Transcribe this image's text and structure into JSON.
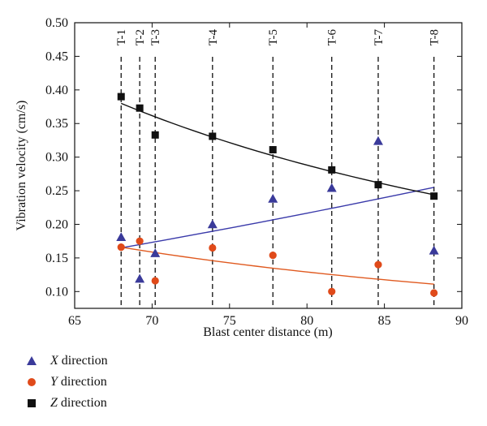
{
  "chart_data": {
    "type": "scatter",
    "xlabel": "Blast center distance (m)",
    "ylabel": "Vibration velocity (cm/s)",
    "xlim": [
      65,
      90
    ],
    "ylim": [
      0.075,
      0.5
    ],
    "xticks": [
      "65",
      "70",
      "75",
      "80",
      "85",
      "90"
    ],
    "yticks": [
      "0.10",
      "0.15",
      "0.20",
      "0.25",
      "0.30",
      "0.35",
      "0.40",
      "0.45",
      "0.50"
    ],
    "grid": false,
    "legend_position": "bottom-left",
    "vertical_lines": [
      {
        "label": "T-1",
        "x": 68.0
      },
      {
        "label": "T-2",
        "x": 69.2
      },
      {
        "label": "T-3",
        "x": 70.2
      },
      {
        "label": "T-4",
        "x": 73.9
      },
      {
        "label": "T-5",
        "x": 77.8
      },
      {
        "label": "T-6",
        "x": 81.6
      },
      {
        "label": "T-7",
        "x": 84.6
      },
      {
        "label": "T-8",
        "x": 88.2
      }
    ],
    "series": [
      {
        "name": "X direction",
        "letter": "X",
        "rest": " direction",
        "marker": "triangle",
        "color": "#3a3a9a",
        "x": [
          68.0,
          69.2,
          70.2,
          73.9,
          77.8,
          81.6,
          84.6,
          88.2
        ],
        "y": [
          0.181,
          0.119,
          0.157,
          0.2,
          0.238,
          0.254,
          0.324,
          0.161
        ],
        "fit": {
          "x": [
            68.0,
            88.2
          ],
          "y": [
            0.165,
            0.255
          ],
          "color": "#3a3aaa"
        }
      },
      {
        "name": "Y direction",
        "letter": "Y",
        "rest": " direction",
        "marker": "circle",
        "color": "#e04a1a",
        "x": [
          68.0,
          69.2,
          70.2,
          73.9,
          77.8,
          81.6,
          84.6,
          88.2
        ],
        "y": [
          0.166,
          0.175,
          0.116,
          0.165,
          0.154,
          0.1,
          0.14,
          0.098
        ],
        "fit": {
          "x": [
            68.0,
            88.2
          ],
          "y": [
            0.166,
            0.111
          ],
          "color": "#e05a20"
        }
      },
      {
        "name": "Z direction",
        "letter": "Z",
        "rest": " direction",
        "marker": "square",
        "color": "#111111",
        "x": [
          68.0,
          69.2,
          70.2,
          73.9,
          77.8,
          81.6,
          84.6,
          88.2
        ],
        "y": [
          0.39,
          0.373,
          0.333,
          0.331,
          0.311,
          0.281,
          0.259,
          0.242
        ],
        "fit": {
          "x": [
            68.0,
            88.2
          ],
          "y": [
            0.38,
            0.244
          ],
          "color": "#111111"
        }
      }
    ]
  }
}
